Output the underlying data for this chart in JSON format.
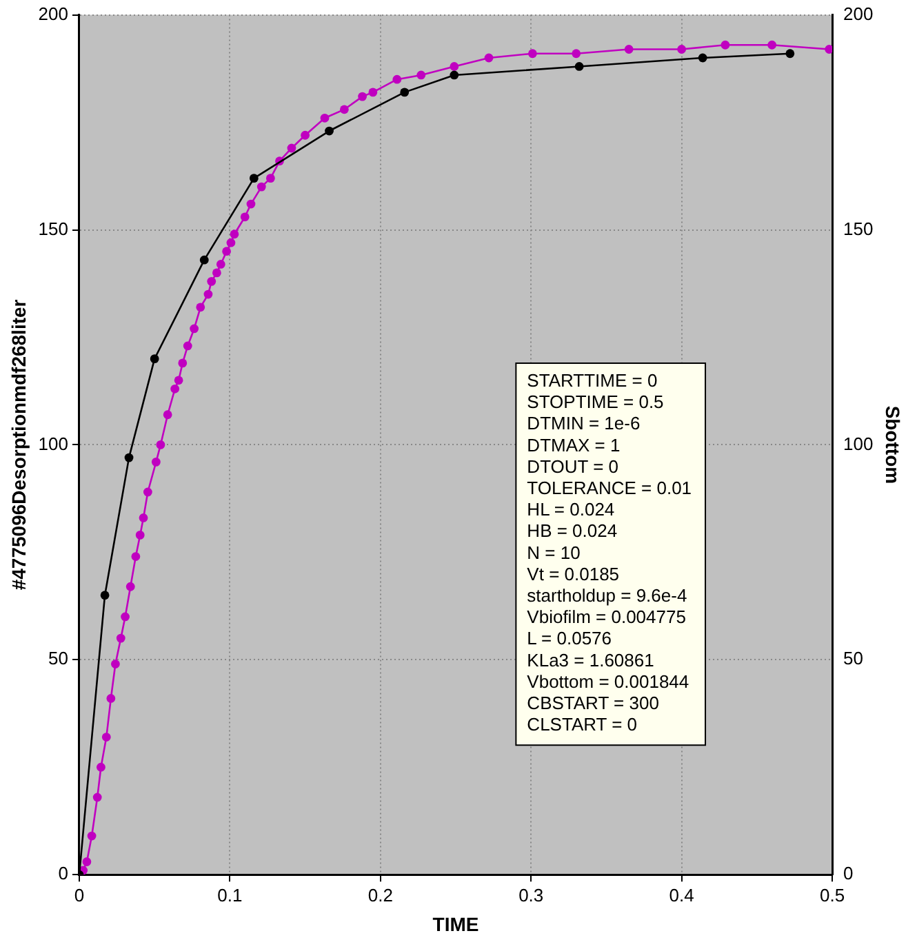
{
  "chart_data": {
    "type": "line",
    "xlabel": "TIME",
    "ylabel": "#4775096Desorptionmdf268liter",
    "y2label": "Sbottom",
    "xlim": [
      0,
      0.5
    ],
    "xticks": [
      0,
      0.1,
      0.2,
      0.3,
      0.4,
      0.5
    ],
    "ylim": [
      0,
      200
    ],
    "yticks": [
      0,
      50,
      100,
      150,
      200
    ],
    "y2lim": [
      0,
      200
    ],
    "y2ticks": [
      0,
      50,
      100,
      150,
      200
    ],
    "grid": true,
    "legend": false,
    "marker": "circle",
    "line_style": "solid",
    "series": [
      {
        "color": "#000000",
        "x": [
          0,
          0.017,
          0.033,
          0.05,
          0.083,
          0.116,
          0.166,
          0.216,
          0.249,
          0.332,
          0.414,
          0.472
        ],
        "values": [
          0,
          65,
          97,
          120,
          143,
          162,
          173,
          182,
          186,
          188,
          190,
          191
        ]
      },
      {
        "color": "#c000c0",
        "x": [
          0,
          0.0026,
          0.005,
          0.0083,
          0.012,
          0.0144,
          0.018,
          0.021,
          0.024,
          0.0276,
          0.0305,
          0.034,
          0.0375,
          0.0404,
          0.0426,
          0.0455,
          0.051,
          0.054,
          0.0587,
          0.0635,
          0.066,
          0.0686,
          0.072,
          0.0763,
          0.0805,
          0.0856,
          0.0878,
          0.0913,
          0.094,
          0.0978,
          0.1007,
          0.103,
          0.11,
          0.114,
          0.121,
          0.127,
          0.133,
          0.141,
          0.15,
          0.163,
          0.176,
          0.188,
          0.195,
          0.211,
          0.227,
          0.249,
          0.272,
          0.301,
          0.33,
          0.365,
          0.4,
          0.429,
          0.46,
          0.498
        ],
        "values": [
          0,
          1,
          3,
          9,
          18,
          25,
          32,
          41,
          49,
          55,
          60,
          67,
          74,
          79,
          83,
          89,
          96,
          100,
          107,
          113,
          115,
          119,
          123,
          127,
          132,
          135,
          138,
          140,
          142,
          145,
          147,
          149,
          153,
          156,
          160,
          162,
          166,
          169,
          172,
          176,
          178,
          181,
          182,
          185,
          186,
          188,
          190,
          191,
          191,
          192,
          192,
          193,
          193,
          192
        ]
      }
    ],
    "annotations": [
      "STARTTIME = 0",
      "STOPTIME = 0.5",
      "DTMIN = 1e-6",
      "DTMAX = 1",
      "DTOUT = 0",
      "TOLERANCE = 0.01",
      "HL = 0.024",
      "HB = 0.024",
      "N = 10",
      "Vt = 0.0185",
      "startholdup = 9.6e-4",
      "Vbiofilm = 0.004775",
      "L = 0.0576",
      "KLa3 = 1.60861",
      "Vbottom = 0.001844",
      "CBSTART = 300",
      "CLSTART = 0"
    ]
  }
}
